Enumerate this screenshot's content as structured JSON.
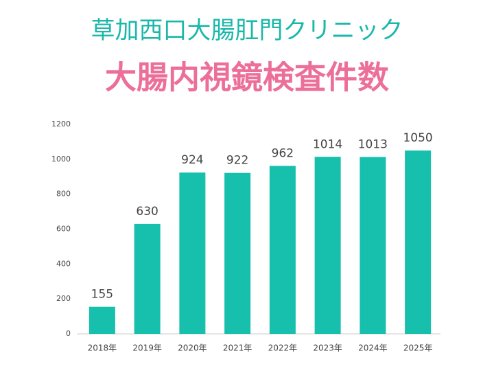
{
  "chart_data": {
    "type": "bar",
    "title": "草加西口大腸肛門クリニック",
    "subtitle": "大腸内視鏡検査件数",
    "categories": [
      "2018年",
      "2019年",
      "2020年",
      "2021年",
      "2022年",
      "2023年",
      "2024年",
      "2025年"
    ],
    "values": [
      155,
      630,
      924,
      922,
      962,
      1014,
      1013,
      1050
    ],
    "color": "#17bfad",
    "ylim": [
      0,
      1200
    ],
    "yticks": [
      0,
      200,
      400,
      600,
      800,
      1000,
      1200
    ],
    "grid": false
  }
}
